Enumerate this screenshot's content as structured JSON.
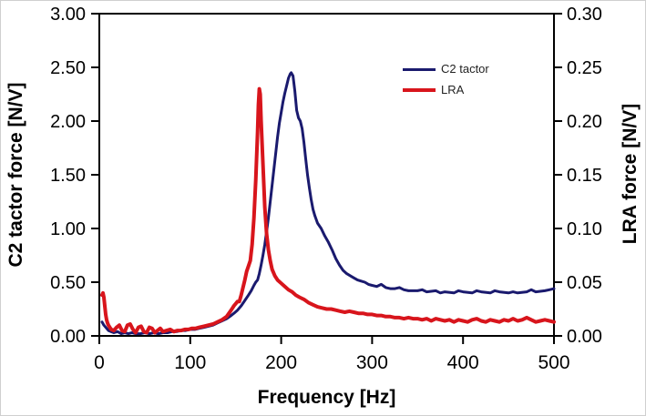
{
  "chart_data": {
    "type": "line",
    "title": "",
    "xlabel": "Frequency [Hz]",
    "ylabel_left": "C2 tactor force [N/V]",
    "ylabel_right": "LRA force [N/V]",
    "x_range": [
      0,
      500
    ],
    "y_left_range": [
      0,
      3.0
    ],
    "y_right_range": [
      0,
      0.3
    ],
    "x_ticks": [
      "0",
      "100",
      "200",
      "300",
      "400",
      "500"
    ],
    "y_left_ticks": [
      "0.00",
      "0.50",
      "1.00",
      "1.50",
      "2.00",
      "2.50",
      "3.00"
    ],
    "y_right_ticks": [
      "0.00",
      "0.05",
      "0.10",
      "0.15",
      "0.20",
      "0.25",
      "0.30"
    ],
    "grid": false,
    "legend_position": "inside-top-right",
    "axis_color": "#000000",
    "background_color": "#ffffff",
    "series": [
      {
        "name": "C2 tactor",
        "axis": "left",
        "color": "#1a1a6e",
        "stroke_width": 3,
        "peak": {
          "x": 211,
          "y": 2.45
        },
        "points": [
          [
            3,
            0.13
          ],
          [
            5,
            0.1
          ],
          [
            8,
            0.07
          ],
          [
            10,
            0.05
          ],
          [
            13,
            0.04
          ],
          [
            16,
            0.03
          ],
          [
            20,
            0.04
          ],
          [
            24,
            0.02
          ],
          [
            28,
            0.03
          ],
          [
            32,
            0.02
          ],
          [
            36,
            0.03
          ],
          [
            40,
            0.02
          ],
          [
            45,
            0.02
          ],
          [
            50,
            0.03
          ],
          [
            55,
            0.02
          ],
          [
            60,
            0.03
          ],
          [
            65,
            0.02
          ],
          [
            70,
            0.03
          ],
          [
            75,
            0.03
          ],
          [
            80,
            0.04
          ],
          [
            85,
            0.04
          ],
          [
            90,
            0.05
          ],
          [
            95,
            0.05
          ],
          [
            100,
            0.06
          ],
          [
            105,
            0.06
          ],
          [
            110,
            0.07
          ],
          [
            115,
            0.08
          ],
          [
            120,
            0.09
          ],
          [
            125,
            0.1
          ],
          [
            130,
            0.12
          ],
          [
            135,
            0.14
          ],
          [
            140,
            0.16
          ],
          [
            145,
            0.19
          ],
          [
            148,
            0.21
          ],
          [
            152,
            0.24
          ],
          [
            156,
            0.28
          ],
          [
            160,
            0.33
          ],
          [
            164,
            0.38
          ],
          [
            167,
            0.42
          ],
          [
            170,
            0.47
          ],
          [
            172,
            0.5
          ],
          [
            174,
            0.52
          ],
          [
            176,
            0.58
          ],
          [
            178,
            0.66
          ],
          [
            180,
            0.75
          ],
          [
            182,
            0.85
          ],
          [
            184,
            0.97
          ],
          [
            186,
            1.1
          ],
          [
            188,
            1.25
          ],
          [
            190,
            1.4
          ],
          [
            192,
            1.55
          ],
          [
            194,
            1.7
          ],
          [
            196,
            1.85
          ],
          [
            198,
            1.98
          ],
          [
            200,
            2.08
          ],
          [
            202,
            2.18
          ],
          [
            204,
            2.26
          ],
          [
            206,
            2.33
          ],
          [
            208,
            2.4
          ],
          [
            210,
            2.44
          ],
          [
            211,
            2.45
          ],
          [
            213,
            2.42
          ],
          [
            215,
            2.28
          ],
          [
            217,
            2.1
          ],
          [
            219,
            2.03
          ],
          [
            221,
            2.0
          ],
          [
            223,
            1.93
          ],
          [
            225,
            1.8
          ],
          [
            227,
            1.65
          ],
          [
            229,
            1.5
          ],
          [
            231,
            1.38
          ],
          [
            233,
            1.27
          ],
          [
            235,
            1.18
          ],
          [
            237,
            1.12
          ],
          [
            240,
            1.05
          ],
          [
            244,
            1.0
          ],
          [
            248,
            0.93
          ],
          [
            252,
            0.87
          ],
          [
            256,
            0.8
          ],
          [
            260,
            0.72
          ],
          [
            264,
            0.66
          ],
          [
            268,
            0.61
          ],
          [
            272,
            0.58
          ],
          [
            276,
            0.56
          ],
          [
            280,
            0.54
          ],
          [
            284,
            0.52
          ],
          [
            288,
            0.51
          ],
          [
            292,
            0.5
          ],
          [
            296,
            0.48
          ],
          [
            300,
            0.47
          ],
          [
            305,
            0.46
          ],
          [
            310,
            0.48
          ],
          [
            315,
            0.45
          ],
          [
            320,
            0.44
          ],
          [
            325,
            0.44
          ],
          [
            330,
            0.45
          ],
          [
            335,
            0.43
          ],
          [
            340,
            0.42
          ],
          [
            350,
            0.42
          ],
          [
            355,
            0.43
          ],
          [
            360,
            0.41
          ],
          [
            370,
            0.42
          ],
          [
            375,
            0.4
          ],
          [
            380,
            0.41
          ],
          [
            390,
            0.4
          ],
          [
            395,
            0.42
          ],
          [
            400,
            0.41
          ],
          [
            410,
            0.4
          ],
          [
            415,
            0.42
          ],
          [
            420,
            0.41
          ],
          [
            430,
            0.4
          ],
          [
            435,
            0.42
          ],
          [
            440,
            0.41
          ],
          [
            450,
            0.4
          ],
          [
            455,
            0.41
          ],
          [
            460,
            0.4
          ],
          [
            470,
            0.41
          ],
          [
            475,
            0.43
          ],
          [
            480,
            0.41
          ],
          [
            490,
            0.42
          ],
          [
            495,
            0.43
          ],
          [
            500,
            0.44
          ]
        ]
      },
      {
        "name": "LRA",
        "axis": "right",
        "color": "#d8151c",
        "stroke_width": 4,
        "peak": {
          "x": 176,
          "y": 0.23
        },
        "points": [
          [
            3,
            0.038
          ],
          [
            4,
            0.04
          ],
          [
            5,
            0.036
          ],
          [
            6,
            0.028
          ],
          [
            7,
            0.02
          ],
          [
            8,
            0.015
          ],
          [
            9,
            0.012
          ],
          [
            10,
            0.01
          ],
          [
            13,
            0.006
          ],
          [
            16,
            0.005
          ],
          [
            19,
            0.008
          ],
          [
            22,
            0.01
          ],
          [
            25,
            0.005
          ],
          [
            28,
            0.004
          ],
          [
            31,
            0.01
          ],
          [
            34,
            0.011
          ],
          [
            37,
            0.006
          ],
          [
            40,
            0.003
          ],
          [
            43,
            0.008
          ],
          [
            46,
            0.009
          ],
          [
            49,
            0.004
          ],
          [
            52,
            0.003
          ],
          [
            55,
            0.008
          ],
          [
            58,
            0.007
          ],
          [
            61,
            0.003
          ],
          [
            64,
            0.005
          ],
          [
            67,
            0.007
          ],
          [
            70,
            0.004
          ],
          [
            74,
            0.005
          ],
          [
            78,
            0.006
          ],
          [
            82,
            0.004
          ],
          [
            86,
            0.005
          ],
          [
            90,
            0.005
          ],
          [
            94,
            0.006
          ],
          [
            98,
            0.006
          ],
          [
            102,
            0.007
          ],
          [
            106,
            0.007
          ],
          [
            110,
            0.008
          ],
          [
            115,
            0.009
          ],
          [
            120,
            0.01
          ],
          [
            125,
            0.011
          ],
          [
            130,
            0.013
          ],
          [
            135,
            0.015
          ],
          [
            140,
            0.018
          ],
          [
            145,
            0.024
          ],
          [
            148,
            0.028
          ],
          [
            150,
            0.03
          ],
          [
            152,
            0.032
          ],
          [
            154,
            0.032
          ],
          [
            156,
            0.038
          ],
          [
            158,
            0.045
          ],
          [
            160,
            0.052
          ],
          [
            162,
            0.06
          ],
          [
            164,
            0.065
          ],
          [
            166,
            0.07
          ],
          [
            168,
            0.085
          ],
          [
            170,
            0.11
          ],
          [
            172,
            0.145
          ],
          [
            174,
            0.19
          ],
          [
            175,
            0.215
          ],
          [
            176,
            0.23
          ],
          [
            177,
            0.225
          ],
          [
            178,
            0.2
          ],
          [
            180,
            0.16
          ],
          [
            182,
            0.12
          ],
          [
            184,
            0.095
          ],
          [
            186,
            0.08
          ],
          [
            188,
            0.07
          ],
          [
            190,
            0.062
          ],
          [
            193,
            0.056
          ],
          [
            196,
            0.052
          ],
          [
            200,
            0.049
          ],
          [
            204,
            0.046
          ],
          [
            208,
            0.043
          ],
          [
            212,
            0.041
          ],
          [
            216,
            0.038
          ],
          [
            220,
            0.036
          ],
          [
            225,
            0.034
          ],
          [
            230,
            0.031
          ],
          [
            235,
            0.029
          ],
          [
            240,
            0.027
          ],
          [
            245,
            0.026
          ],
          [
            250,
            0.025
          ],
          [
            255,
            0.025
          ],
          [
            260,
            0.024
          ],
          [
            265,
            0.023
          ],
          [
            270,
            0.022
          ],
          [
            275,
            0.023
          ],
          [
            280,
            0.022
          ],
          [
            285,
            0.021
          ],
          [
            290,
            0.021
          ],
          [
            295,
            0.02
          ],
          [
            300,
            0.02
          ],
          [
            305,
            0.019
          ],
          [
            310,
            0.019
          ],
          [
            315,
            0.018
          ],
          [
            320,
            0.018
          ],
          [
            325,
            0.017
          ],
          [
            330,
            0.017
          ],
          [
            335,
            0.016
          ],
          [
            340,
            0.017
          ],
          [
            345,
            0.016
          ],
          [
            350,
            0.016
          ],
          [
            355,
            0.015
          ],
          [
            360,
            0.016
          ],
          [
            365,
            0.014
          ],
          [
            370,
            0.016
          ],
          [
            375,
            0.015
          ],
          [
            380,
            0.014
          ],
          [
            385,
            0.015
          ],
          [
            390,
            0.013
          ],
          [
            395,
            0.015
          ],
          [
            400,
            0.014
          ],
          [
            405,
            0.013
          ],
          [
            410,
            0.015
          ],
          [
            415,
            0.016
          ],
          [
            420,
            0.014
          ],
          [
            425,
            0.013
          ],
          [
            430,
            0.015
          ],
          [
            435,
            0.014
          ],
          [
            440,
            0.013
          ],
          [
            445,
            0.015
          ],
          [
            450,
            0.014
          ],
          [
            455,
            0.016
          ],
          [
            460,
            0.014
          ],
          [
            465,
            0.015
          ],
          [
            470,
            0.017
          ],
          [
            475,
            0.015
          ],
          [
            480,
            0.013
          ],
          [
            485,
            0.014
          ],
          [
            490,
            0.015
          ],
          [
            495,
            0.014
          ],
          [
            500,
            0.013
          ]
        ]
      }
    ]
  }
}
